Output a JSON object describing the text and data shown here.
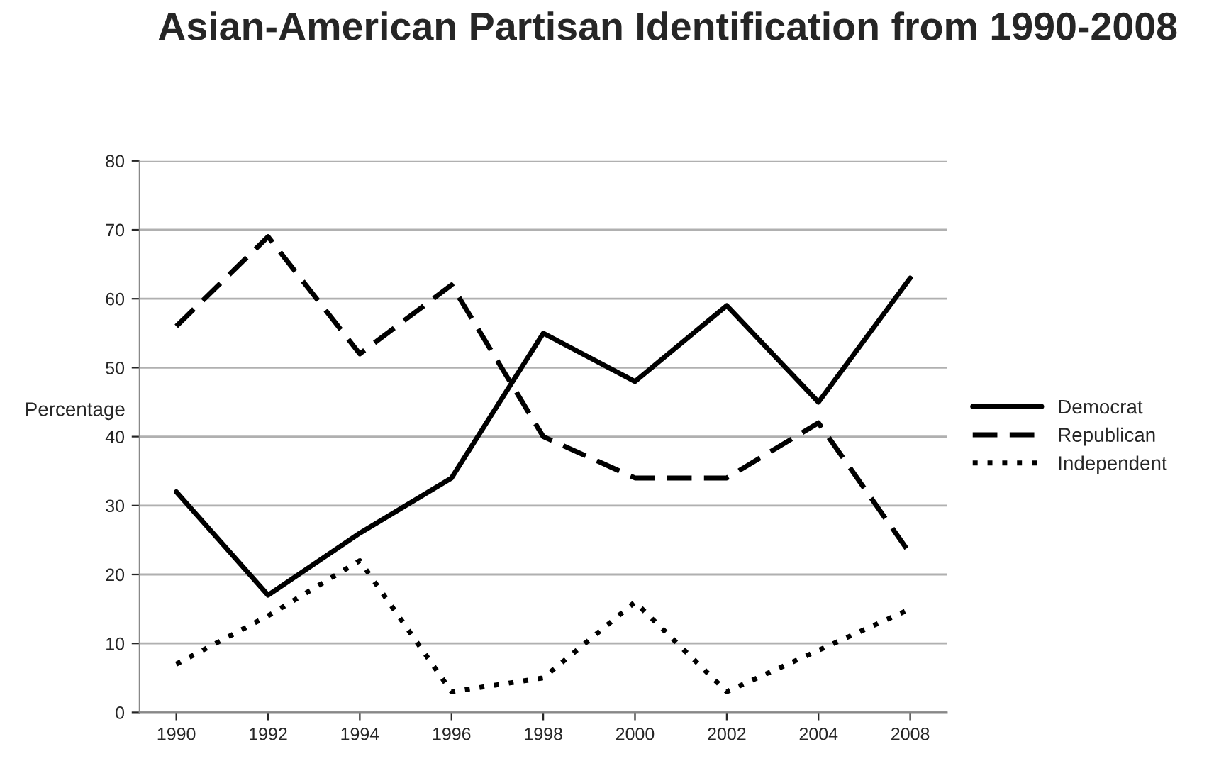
{
  "chart_data": {
    "type": "line",
    "title": "Asian-American Partisan Identification from 1990-2008",
    "ylabel": "Percentage",
    "categories": [
      "1990",
      "1992",
      "1994",
      "1996",
      "1998",
      "2000",
      "2002",
      "2004",
      "2008"
    ],
    "series": [
      {
        "name": "Democrat",
        "color": "#000000",
        "line_style": "solid",
        "values": [
          32,
          17,
          26,
          34,
          55,
          48,
          59,
          45,
          63
        ]
      },
      {
        "name": "Republican",
        "color": "#000000",
        "line_style": "dashed",
        "values": [
          56,
          69,
          52,
          62,
          40,
          34,
          34,
          42,
          23
        ]
      },
      {
        "name": "Independent",
        "color": "#000000",
        "line_style": "dotted",
        "values": [
          7,
          14,
          22,
          3,
          5,
          16,
          3,
          9,
          15
        ]
      }
    ],
    "ylim": [
      0,
      80
    ],
    "yticks": [
      0,
      10,
      20,
      30,
      40,
      50,
      60,
      70,
      80
    ],
    "grid": "y",
    "legend": "right",
    "marker": "none"
  }
}
